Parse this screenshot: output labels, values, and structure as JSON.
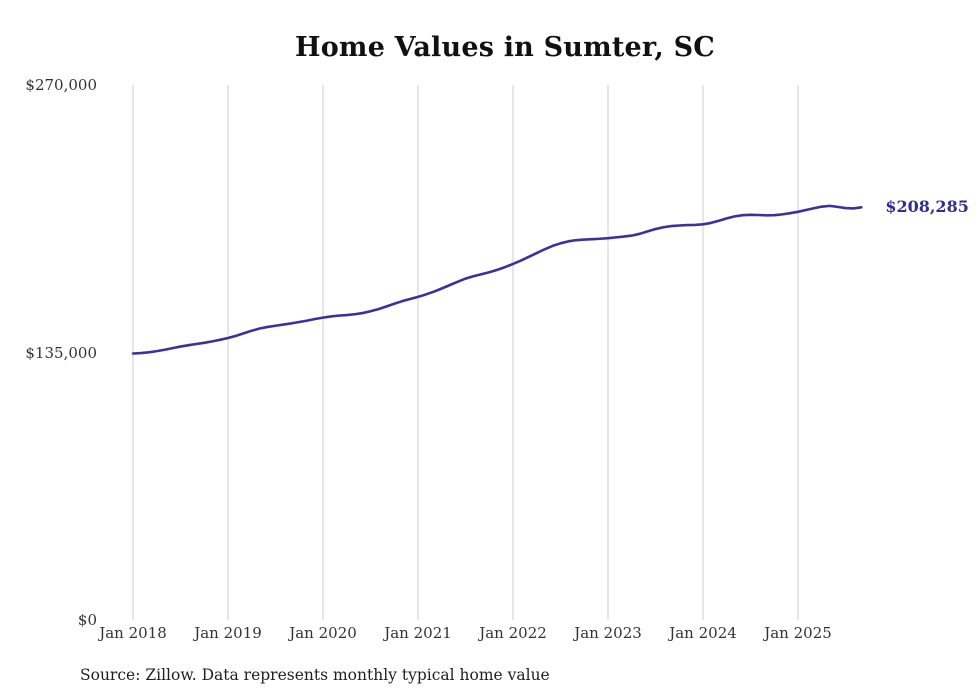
{
  "page": {
    "background": "#ffffff"
  },
  "chart": {
    "title": "Home Values in Sumter, SC",
    "end_label": "$208,285",
    "source": "Source: Zillow. Data represents monthly typical home value",
    "line_color": "#39329b",
    "end_label_color": "#2f2d91",
    "grid_color": "#cccccc",
    "tick_color": "#333333",
    "y_ticks": [
      {
        "label": "$270,000",
        "value": 270000
      },
      {
        "label": "$135,000",
        "value": 135000
      },
      {
        "label": "$0",
        "value": 0
      }
    ],
    "x_ticks": [
      "Jan 2018",
      "Jan 2019",
      "Jan 2020",
      "Jan 2021",
      "Jan 2022",
      "Jan 2023",
      "Jan 2024",
      "Jan 2025"
    ]
  },
  "chart_data": {
    "type": "line",
    "title": "Home Values in Sumter, SC",
    "xlabel": "",
    "ylabel": "",
    "ylim": [
      0,
      270000
    ],
    "y_tick_values": [
      0,
      135000,
      270000
    ],
    "x_unit": "month",
    "x_start": "2018-01",
    "x_end": "2025-09",
    "x_tick_labels": [
      "Jan 2018",
      "Jan 2019",
      "Jan 2020",
      "Jan 2021",
      "Jan 2022",
      "Jan 2023",
      "Jan 2024",
      "Jan 2025"
    ],
    "grid": "vertical-only",
    "legend": "none",
    "end_value": 208285,
    "end_value_label": "$208,285",
    "source": "Source: Zillow. Data represents monthly typical home value",
    "series": [
      {
        "name": "Typical home value",
        "values": [
          134500,
          134700,
          135100,
          135700,
          136400,
          137200,
          138000,
          138700,
          139300,
          139900,
          140600,
          141400,
          142300,
          143400,
          144700,
          146000,
          147100,
          147900,
          148500,
          149100,
          149700,
          150400,
          151100,
          151900,
          152600,
          153200,
          153600,
          153900,
          154300,
          154900,
          155800,
          156900,
          158200,
          159600,
          160900,
          162000,
          163100,
          164300,
          165700,
          167300,
          169000,
          170700,
          172300,
          173500,
          174500,
          175500,
          176700,
          178100,
          179700,
          181400,
          183300,
          185200,
          187100,
          188800,
          190100,
          191100,
          191700,
          192000,
          192200,
          192400,
          192700,
          193100,
          193500,
          194000,
          194900,
          196100,
          197300,
          198200,
          198800,
          199100,
          199300,
          199400,
          199700,
          200400,
          201500,
          202700,
          203700,
          204300,
          204500,
          204400,
          204200,
          204300,
          204700,
          205300,
          206000,
          206900,
          207800,
          208600,
          209000,
          208500,
          207900,
          207700,
          208285
        ]
      }
    ]
  }
}
